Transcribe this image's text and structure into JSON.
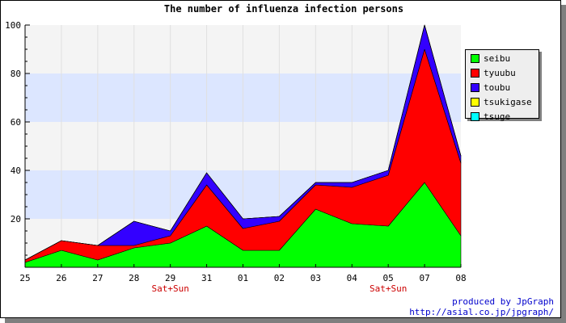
{
  "chart_data": {
    "type": "area",
    "stacked": true,
    "title": "The number of influenza infection persons",
    "categories": [
      "25",
      "26",
      "27",
      "28",
      "29",
      "31",
      "01",
      "02",
      "03",
      "04",
      "05",
      "07",
      "08"
    ],
    "category_notes": [
      {
        "category": "29",
        "text": "Sat+Sun"
      },
      {
        "category": "05",
        "text": "Sat+Sun"
      }
    ],
    "ylim": [
      0,
      100
    ],
    "yticks": [
      20,
      40,
      60,
      80,
      100
    ],
    "grid_band_colors": [
      "#dce6ff",
      "#f4f4f4"
    ],
    "legend_position": "right",
    "series": [
      {
        "name": "seibu",
        "color": "#00ff00",
        "values": [
          2,
          7,
          3,
          8,
          10,
          17,
          7,
          7,
          24,
          18,
          17,
          35,
          13
        ]
      },
      {
        "name": "tyuubu",
        "color": "#ff0000",
        "values": [
          1,
          4,
          6,
          1,
          3,
          17,
          9,
          12,
          10,
          15,
          21,
          55,
          30
        ]
      },
      {
        "name": "toubu",
        "color": "#3300ff",
        "values": [
          0,
          0,
          0,
          10,
          2,
          5,
          4,
          2,
          1,
          2,
          2,
          10,
          3
        ]
      },
      {
        "name": "tsukigase",
        "color": "#ffff00",
        "values": [
          0,
          0,
          0,
          0,
          0,
          0,
          0,
          0,
          0,
          0,
          0,
          0,
          0
        ]
      },
      {
        "name": "tsuge",
        "color": "#00ffff",
        "values": [
          0,
          0,
          0,
          0,
          0,
          0,
          0,
          0,
          0,
          0,
          0,
          0,
          0
        ]
      }
    ]
  },
  "credits": {
    "line1": "produced by JpGraph",
    "line2": "http://asial.co.jp/jpgraph/"
  }
}
